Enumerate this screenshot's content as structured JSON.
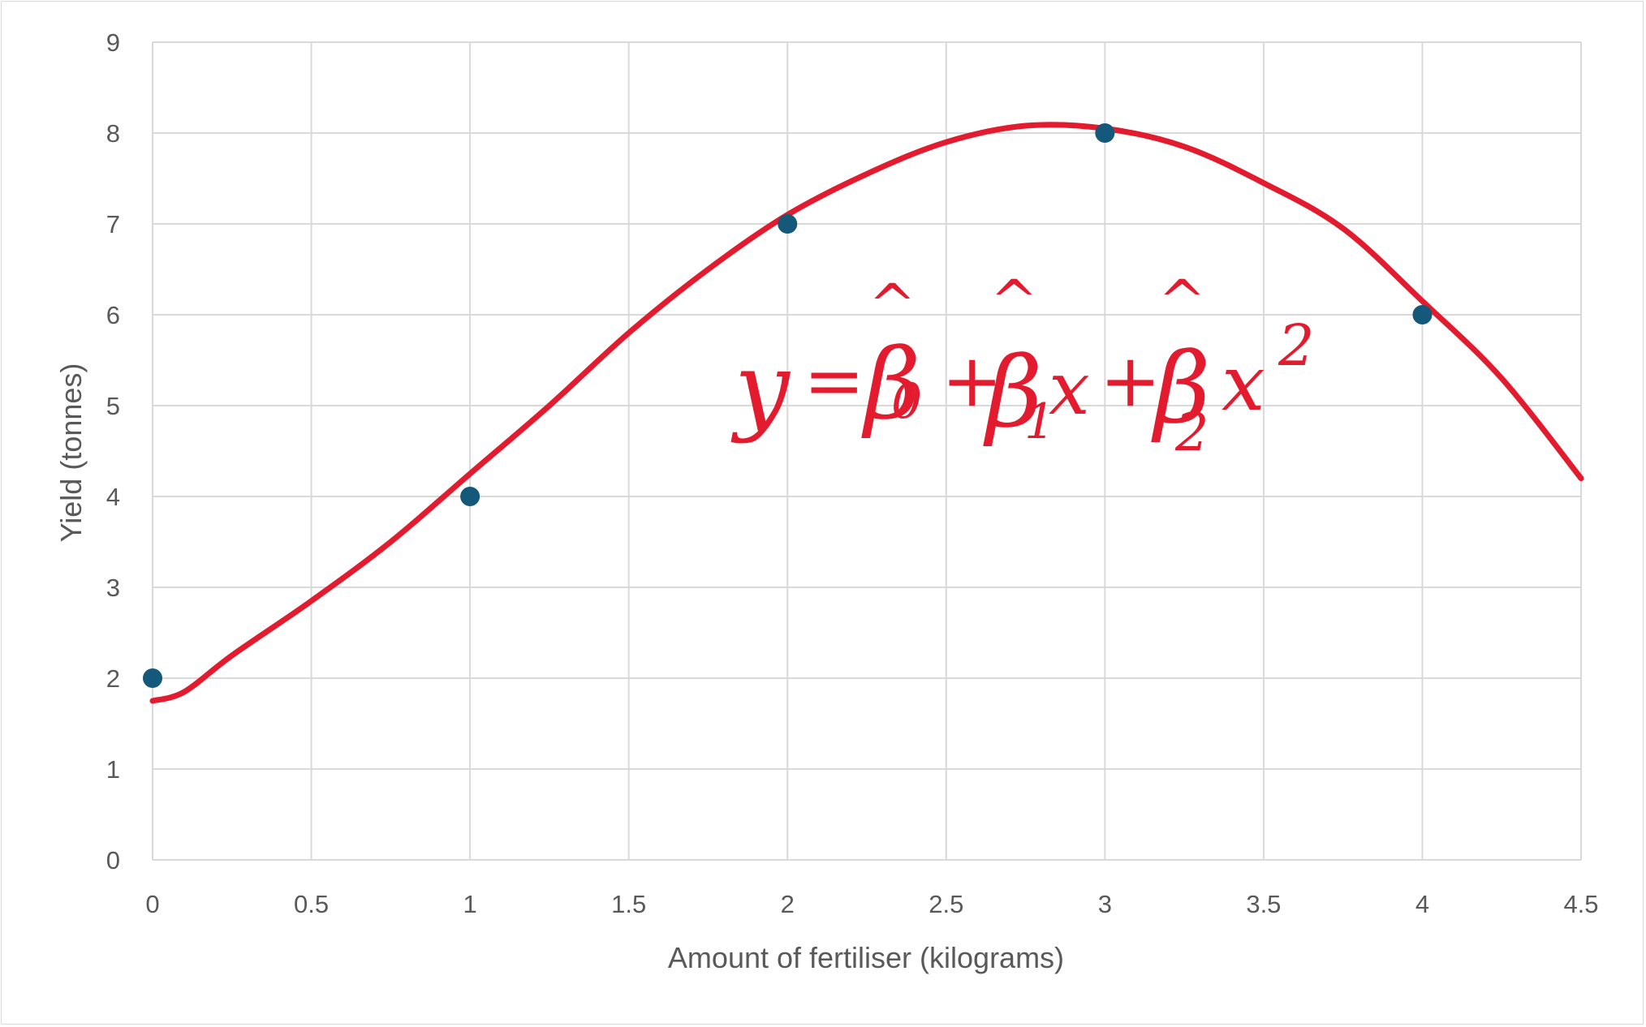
{
  "chart_data": {
    "type": "scatter",
    "xlabel": "Amount of fertiliser (kilograms)",
    "ylabel": "Yield (tonnes)",
    "xlim": [
      0,
      4.5
    ],
    "ylim": [
      0,
      9
    ],
    "x_ticks": [
      "0",
      "0.5",
      "1",
      "1.5",
      "2",
      "2.5",
      "3",
      "3.5",
      "4",
      "4.5"
    ],
    "y_ticks": [
      "0",
      "1",
      "2",
      "3",
      "4",
      "5",
      "6",
      "7",
      "8",
      "9"
    ],
    "grid": true,
    "points": {
      "x": [
        0,
        1,
        2,
        3,
        4
      ],
      "y": [
        2,
        4,
        7,
        8,
        6
      ],
      "color": "#14587a"
    },
    "fitted_curve": {
      "color": "#e31b2e",
      "x": [
        0,
        0.1,
        0.25,
        0.5,
        0.75,
        1,
        1.25,
        1.5,
        1.75,
        2,
        2.25,
        2.5,
        2.75,
        3,
        3.25,
        3.5,
        3.75,
        4,
        4.25,
        4.5
      ],
      "y": [
        1.75,
        1.85,
        2.25,
        2.85,
        3.5,
        4.25,
        5.0,
        5.8,
        6.5,
        7.1,
        7.55,
        7.9,
        8.08,
        8.05,
        7.85,
        7.45,
        6.95,
        6.15,
        5.3,
        4.2
      ]
    },
    "annotation": {
      "y": "y",
      "eq": "=",
      "beta": "β",
      "hat": "^",
      "plus": "+",
      "x": "x",
      "sub0": "0",
      "sub1": "1",
      "sub2": "2",
      "sup2": "2"
    }
  }
}
